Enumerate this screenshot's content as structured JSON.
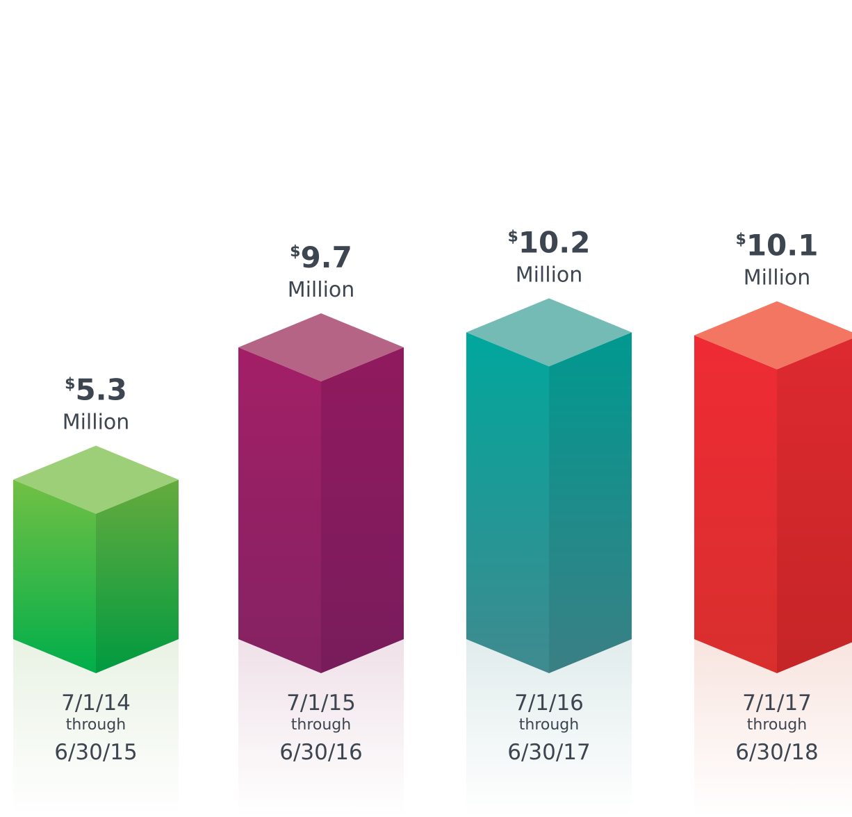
{
  "chart_data": {
    "type": "bar",
    "title": "",
    "xlabel": "",
    "ylabel": "",
    "categories": [
      {
        "start": "7/1/14",
        "connector": "through",
        "end": "6/30/15"
      },
      {
        "start": "7/1/15",
        "connector": "through",
        "end": "6/30/16"
      },
      {
        "start": "7/1/16",
        "connector": "through",
        "end": "6/30/17"
      },
      {
        "start": "7/1/17",
        "connector": "through",
        "end": "6/30/18"
      }
    ],
    "values": [
      5.3,
      9.7,
      10.2,
      10.1
    ],
    "value_labels": [
      {
        "prefix": "$",
        "number": "5.3",
        "unit": "Million"
      },
      {
        "prefix": "$",
        "number": "9.7",
        "unit": "Million"
      },
      {
        "prefix": "$",
        "number": "10.2",
        "unit": "Million"
      },
      {
        "prefix": "$",
        "number": "10.1",
        "unit": "Million"
      }
    ],
    "ylim": [
      0,
      10.5
    ],
    "grid": false,
    "legend": "none",
    "colors": [
      {
        "top": "#9dcf78",
        "left_top": "#72c044",
        "left_bottom": "#00ae4b",
        "right_top": "#66ab3e",
        "right_bottom": "#009a40",
        "reflection": "#e9f2e4"
      },
      {
        "top": "#b56485",
        "left_top": "#a31f66",
        "left_bottom": "#842262",
        "right_top": "#911a5e",
        "right_bottom": "#781c5c",
        "reflection": "#efe1e8"
      },
      {
        "top": "#74bbb5",
        "left_top": "#00a79d",
        "left_bottom": "#408a8f",
        "right_top": "#009990",
        "right_bottom": "#3a7f84",
        "reflection": "#e1ecec"
      },
      {
        "top": "#f37663",
        "left_top": "#ef2b34",
        "left_bottom": "#d82f2d",
        "right_top": "#dd2a30",
        "right_bottom": "#c52527",
        "reflection": "#f8e4df"
      }
    ]
  }
}
